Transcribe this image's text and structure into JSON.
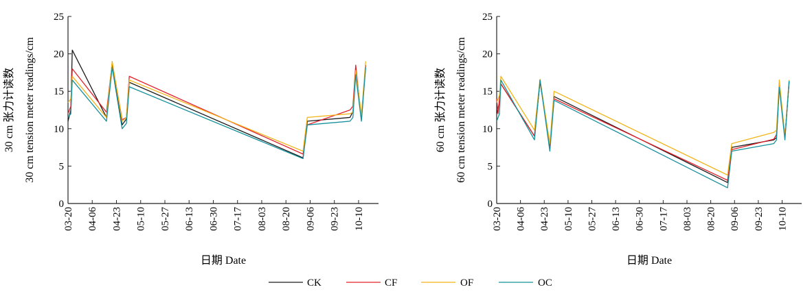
{
  "colors": {
    "CK": "#1a1a1a",
    "CF": "#e3202a",
    "OF": "#f2b418",
    "OC": "#13909b"
  },
  "legend": [
    "CK",
    "CF",
    "OF",
    "OC"
  ],
  "chart_data": [
    {
      "type": "line",
      "xlabel": "日期 Date",
      "ylabel": [
        "30 cm 张力计读数",
        "30 cm tension meter readings/cm"
      ],
      "ylim": [
        0,
        25
      ],
      "yticks": [
        0,
        5,
        10,
        15,
        20,
        25
      ],
      "xlim": [
        "03-20",
        "10-24"
      ],
      "xticks": [
        "03-20",
        "04-06",
        "04-23",
        "05-10",
        "05-27",
        "06-13",
        "06-30",
        "07-17",
        "08-03",
        "08-20",
        "09-06",
        "09-23",
        "10-10"
      ],
      "legend_position": "bottom",
      "series": [
        {
          "name": "CK",
          "points": [
            [
              "03-20",
              11.0
            ],
            [
              "03-22",
              12.5
            ],
            [
              "03-23",
              20.5
            ],
            [
              "04-16",
              11.5
            ],
            [
              "04-20",
              18.7
            ],
            [
              "04-27",
              10.5
            ],
            [
              "04-30",
              11.3
            ],
            [
              "05-02",
              16.2
            ],
            [
              "09-01",
              6.1
            ],
            [
              "09-04",
              11.0
            ],
            [
              "10-04",
              11.5
            ],
            [
              "10-06",
              12.3
            ],
            [
              "10-08",
              18.0
            ],
            [
              "10-12",
              11.5
            ],
            [
              "10-15",
              18.5
            ]
          ]
        },
        {
          "name": "CF",
          "points": [
            [
              "03-20",
              12.0
            ],
            [
              "03-22",
              13.0
            ],
            [
              "03-23",
              18.0
            ],
            [
              "04-16",
              12.2
            ],
            [
              "04-20",
              18.8
            ],
            [
              "04-27",
              11.2
            ],
            [
              "04-30",
              11.5
            ],
            [
              "05-02",
              17.0
            ],
            [
              "09-01",
              6.6
            ],
            [
              "09-04",
              10.5
            ],
            [
              "10-04",
              12.5
            ],
            [
              "10-06",
              13.0
            ],
            [
              "10-08",
              18.5
            ],
            [
              "10-12",
              11.2
            ],
            [
              "10-15",
              18.5
            ]
          ]
        },
        {
          "name": "OF",
          "points": [
            [
              "03-20",
              13.5
            ],
            [
              "03-22",
              14.0
            ],
            [
              "03-23",
              17.0
            ],
            [
              "04-16",
              11.5
            ],
            [
              "04-20",
              19.0
            ],
            [
              "04-27",
              11.0
            ],
            [
              "04-30",
              11.5
            ],
            [
              "05-02",
              16.5
            ],
            [
              "09-01",
              7.0
            ],
            [
              "09-04",
              11.5
            ],
            [
              "10-04",
              12.0
            ],
            [
              "10-06",
              12.2
            ],
            [
              "10-08",
              17.8
            ],
            [
              "10-12",
              11.8
            ],
            [
              "10-15",
              19.0
            ]
          ]
        },
        {
          "name": "OC",
          "points": [
            [
              "03-20",
              11.5
            ],
            [
              "03-22",
              12.0
            ],
            [
              "03-23",
              16.5
            ],
            [
              "04-16",
              11.0
            ],
            [
              "04-20",
              18.2
            ],
            [
              "04-27",
              10.0
            ],
            [
              "04-30",
              10.7
            ],
            [
              "05-02",
              15.6
            ],
            [
              "09-01",
              6.0
            ],
            [
              "09-04",
              10.5
            ],
            [
              "10-04",
              11.0
            ],
            [
              "10-06",
              11.5
            ],
            [
              "10-08",
              17.2
            ],
            [
              "10-12",
              11.0
            ],
            [
              "10-15",
              18.2
            ]
          ]
        }
      ]
    },
    {
      "type": "line",
      "xlabel": "日期 Date",
      "ylabel": [
        "60 cm 张力计读数",
        "60 cm tension meter readings/cm"
      ],
      "ylim": [
        0,
        25
      ],
      "yticks": [
        0,
        5,
        10,
        15,
        20,
        25
      ],
      "xlim": [
        "03-20",
        "10-24"
      ],
      "xticks": [
        "03-20",
        "04-06",
        "04-23",
        "05-10",
        "05-27",
        "06-13",
        "06-30",
        "07-17",
        "08-03",
        "08-20",
        "09-06",
        "09-23",
        "10-10"
      ],
      "legend_position": "bottom",
      "series": [
        {
          "name": "CK",
          "points": [
            [
              "03-20",
              12.0
            ],
            [
              "03-22",
              13.5
            ],
            [
              "03-23",
              16.0
            ],
            [
              "04-16",
              9.0
            ],
            [
              "04-20",
              16.3
            ],
            [
              "04-27",
              7.8
            ],
            [
              "04-30",
              14.3
            ],
            [
              "09-01",
              2.8
            ],
            [
              "09-04",
              7.5
            ],
            [
              "10-04",
              8.5
            ],
            [
              "10-06",
              8.8
            ],
            [
              "10-08",
              15.8
            ],
            [
              "10-12",
              8.8
            ],
            [
              "10-15",
              16.3
            ]
          ]
        },
        {
          "name": "CF",
          "points": [
            [
              "03-20",
              14.0
            ],
            [
              "03-21",
              12.0
            ],
            [
              "03-23",
              16.0
            ],
            [
              "04-16",
              9.0
            ],
            [
              "04-20",
              16.5
            ],
            [
              "04-27",
              7.5
            ],
            [
              "04-30",
              14.0
            ],
            [
              "09-01",
              3.1
            ],
            [
              "09-04",
              7.2
            ],
            [
              "10-04",
              8.6
            ],
            [
              "10-06",
              9.2
            ],
            [
              "10-08",
              16.0
            ],
            [
              "10-12",
              9.0
            ],
            [
              "10-15",
              16.2
            ]
          ]
        },
        {
          "name": "OF",
          "points": [
            [
              "03-20",
              13.5
            ],
            [
              "03-22",
              14.5
            ],
            [
              "03-23",
              17.0
            ],
            [
              "04-16",
              9.8
            ],
            [
              "04-20",
              16.6
            ],
            [
              "04-27",
              8.0
            ],
            [
              "04-30",
              15.0
            ],
            [
              "09-01",
              3.8
            ],
            [
              "09-04",
              8.0
            ],
            [
              "10-04",
              9.5
            ],
            [
              "10-06",
              9.8
            ],
            [
              "10-08",
              16.5
            ],
            [
              "10-12",
              9.0
            ],
            [
              "10-15",
              16.5
            ]
          ]
        },
        {
          "name": "OC",
          "points": [
            [
              "03-20",
              11.0
            ],
            [
              "03-22",
              12.0
            ],
            [
              "03-23",
              16.5
            ],
            [
              "04-16",
              8.5
            ],
            [
              "04-20",
              16.5
            ],
            [
              "04-27",
              7.0
            ],
            [
              "04-30",
              13.8
            ],
            [
              "09-01",
              2.1
            ],
            [
              "09-04",
              7.0
            ],
            [
              "10-04",
              8.0
            ],
            [
              "10-06",
              8.5
            ],
            [
              "10-08",
              15.5
            ],
            [
              "10-12",
              8.5
            ],
            [
              "10-15",
              16.4
            ]
          ]
        }
      ]
    }
  ]
}
